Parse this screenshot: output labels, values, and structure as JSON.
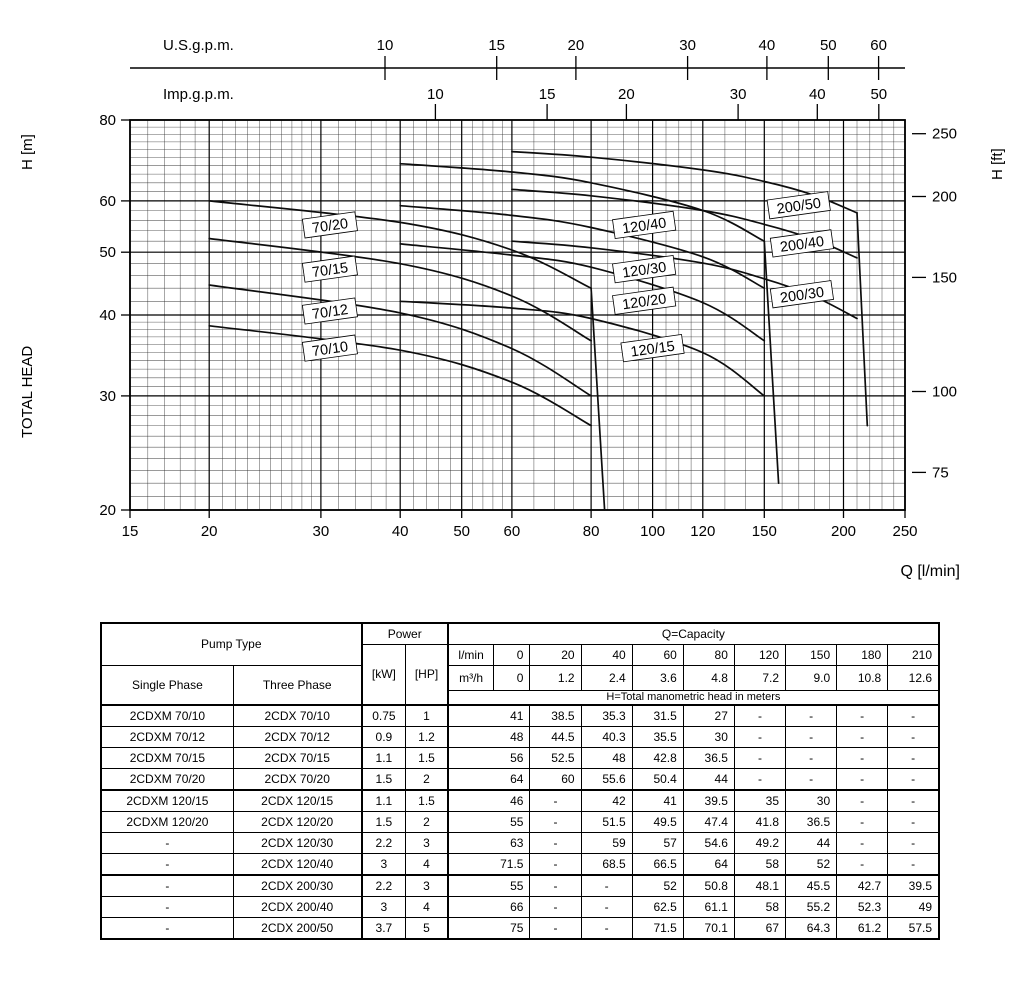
{
  "chart_data": {
    "type": "line",
    "x_scale": "log",
    "y_scale": "log",
    "xlim": [
      15,
      250
    ],
    "ylim": [
      20,
      80
    ],
    "grid": "on",
    "axes": {
      "top": {
        "label": "U.S.g.p.m.",
        "ticks": [
          10,
          15,
          20,
          30,
          40,
          50,
          60
        ]
      },
      "top2": {
        "label": "Imp.g.p.m.",
        "ticks": [
          10,
          15,
          20,
          30,
          40,
          50
        ]
      },
      "left": {
        "label": "H [m]",
        "title": "TOTAL HEAD",
        "ticks": [
          20,
          30,
          40,
          50,
          60,
          80
        ]
      },
      "right": {
        "label": "H [ft]",
        "ticks": [
          75,
          100,
          150,
          200,
          250
        ]
      },
      "bottom": {
        "label": "Q [l/min]",
        "ticks": [
          15,
          20,
          30,
          40,
          50,
          60,
          80,
          100,
          120,
          150,
          200,
          250
        ]
      }
    },
    "series": [
      {
        "name": "70/10",
        "x": [
          20,
          40,
          60,
          80
        ],
        "y": [
          38.5,
          35.3,
          31.5,
          27
        ],
        "label_at": [
          31,
          35.5
        ]
      },
      {
        "name": "70/12",
        "x": [
          20,
          40,
          60,
          80
        ],
        "y": [
          44.5,
          40.3,
          35.5,
          30
        ],
        "label_at": [
          31,
          40.5
        ]
      },
      {
        "name": "70/15",
        "x": [
          20,
          40,
          60,
          80
        ],
        "y": [
          52.5,
          48,
          42.8,
          36.5
        ],
        "label_at": [
          31,
          47
        ]
      },
      {
        "name": "70/20",
        "x": [
          20,
          40,
          60,
          80
        ],
        "y": [
          60,
          55.6,
          50.4,
          44
        ],
        "label_at": [
          31,
          55
        ]
      },
      {
        "name": "120/15",
        "x": [
          40,
          60,
          80,
          120,
          150
        ],
        "y": [
          42,
          41,
          39.5,
          35,
          30
        ],
        "label_at": [
          100,
          35.5
        ]
      },
      {
        "name": "120/20",
        "x": [
          40,
          60,
          80,
          120,
          150
        ],
        "y": [
          51.5,
          49.5,
          47.4,
          41.8,
          36.5
        ],
        "label_at": [
          97,
          42
        ]
      },
      {
        "name": "120/30",
        "x": [
          40,
          60,
          80,
          120,
          150
        ],
        "y": [
          59,
          57,
          54.6,
          49.2,
          44
        ],
        "label_at": [
          97,
          47
        ]
      },
      {
        "name": "120/40",
        "x": [
          40,
          60,
          80,
          120,
          150
        ],
        "y": [
          68.5,
          66.5,
          64,
          58,
          52
        ],
        "label_at": [
          97,
          55
        ]
      },
      {
        "name": "200/30",
        "x": [
          60,
          80,
          120,
          150,
          180,
          210
        ],
        "y": [
          52,
          50.8,
          48.1,
          45.5,
          42.7,
          39.5
        ],
        "label_at": [
          172,
          43
        ]
      },
      {
        "name": "200/40",
        "x": [
          60,
          80,
          120,
          150,
          180,
          210
        ],
        "y": [
          62.5,
          61.1,
          58,
          55.2,
          52.3,
          49
        ],
        "label_at": [
          172,
          51.5
        ]
      },
      {
        "name": "200/50",
        "x": [
          60,
          80,
          120,
          150,
          180,
          210
        ],
        "y": [
          71.5,
          70.1,
          67,
          64.3,
          61.2,
          57.5
        ],
        "label_at": [
          170,
          59
        ]
      }
    ],
    "limit_lines": [
      {
        "x": [
          80,
          84
        ],
        "y": [
          44,
          20
        ]
      },
      {
        "x": [
          150,
          158
        ],
        "y": [
          52,
          22
        ]
      },
      {
        "x": [
          210,
          218
        ],
        "y": [
          57.5,
          27
        ]
      }
    ]
  },
  "table": {
    "headers": {
      "pump_type": "Pump Type",
      "single_phase": "Single Phase",
      "three_phase": "Three Phase",
      "power": "Power",
      "kw": "[kW]",
      "hp": "[HP]",
      "capacity": "Q=Capacity",
      "lmin_label": "l/min",
      "m3h_label": "m³/h",
      "lmin_values": [
        "0",
        "20",
        "40",
        "60",
        "80",
        "120",
        "150",
        "180",
        "210"
      ],
      "m3h_values": [
        "0",
        "1.2",
        "2.4",
        "3.6",
        "4.8",
        "7.2",
        "9.0",
        "10.8",
        "12.6"
      ],
      "head_note": "H=Total manometric head in meters"
    },
    "rows": [
      {
        "single": "2CDXM 70/10",
        "three": "2CDX 70/10",
        "kw": "0.75",
        "hp": "1",
        "values": [
          "41",
          "38.5",
          "35.3",
          "31.5",
          "27",
          "-",
          "-",
          "-",
          "-"
        ]
      },
      {
        "single": "2CDXM 70/12",
        "three": "2CDX 70/12",
        "kw": "0.9",
        "hp": "1.2",
        "values": [
          "48",
          "44.5",
          "40.3",
          "35.5",
          "30",
          "-",
          "-",
          "-",
          "-"
        ]
      },
      {
        "single": "2CDXM 70/15",
        "three": "2CDX 70/15",
        "kw": "1.1",
        "hp": "1.5",
        "values": [
          "56",
          "52.5",
          "48",
          "42.8",
          "36.5",
          "-",
          "-",
          "-",
          "-"
        ]
      },
      {
        "single": "2CDXM 70/20",
        "three": "2CDX 70/20",
        "kw": "1.5",
        "hp": "2",
        "values": [
          "64",
          "60",
          "55.6",
          "50.4",
          "44",
          "-",
          "-",
          "-",
          "-"
        ]
      },
      {
        "single": "2CDXM 120/15",
        "three": "2CDX 120/15",
        "kw": "1.1",
        "hp": "1.5",
        "values": [
          "46",
          "-",
          "42",
          "41",
          "39.5",
          "35",
          "30",
          "-",
          "-"
        ]
      },
      {
        "single": "2CDXM 120/20",
        "three": "2CDX 120/20",
        "kw": "1.5",
        "hp": "2",
        "values": [
          "55",
          "-",
          "51.5",
          "49.5",
          "47.4",
          "41.8",
          "36.5",
          "-",
          "-"
        ]
      },
      {
        "single": "-",
        "three": "2CDX 120/30",
        "kw": "2.2",
        "hp": "3",
        "values": [
          "63",
          "-",
          "59",
          "57",
          "54.6",
          "49.2",
          "44",
          "-",
          "-"
        ]
      },
      {
        "single": "-",
        "three": "2CDX 120/40",
        "kw": "3",
        "hp": "4",
        "values": [
          "71.5",
          "-",
          "68.5",
          "66.5",
          "64",
          "58",
          "52",
          "-",
          "-"
        ]
      },
      {
        "single": "-",
        "three": "2CDX 200/30",
        "kw": "2.2",
        "hp": "3",
        "values": [
          "55",
          "-",
          "-",
          "52",
          "50.8",
          "48.1",
          "45.5",
          "42.7",
          "39.5"
        ]
      },
      {
        "single": "-",
        "three": "2CDX 200/40",
        "kw": "3",
        "hp": "4",
        "values": [
          "66",
          "-",
          "-",
          "62.5",
          "61.1",
          "58",
          "55.2",
          "52.3",
          "49"
        ]
      },
      {
        "single": "-",
        "three": "2CDX 200/50",
        "kw": "3.7",
        "hp": "5",
        "values": [
          "75",
          "-",
          "-",
          "71.5",
          "70.1",
          "67",
          "64.3",
          "61.2",
          "57.5"
        ]
      }
    ]
  }
}
